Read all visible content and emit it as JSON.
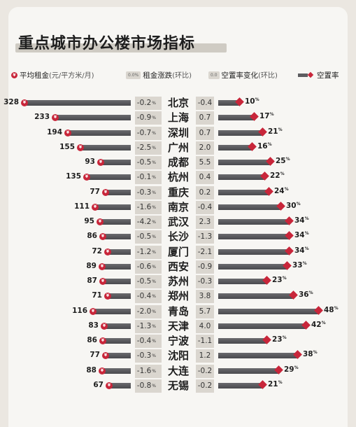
{
  "title": "重点城市办公楼市场指标",
  "legend": {
    "rent_icon": "¥",
    "rent_label": "平均租金",
    "rent_unit": "(元/平方米/月)",
    "rent_change_chip": "0.0%",
    "rent_change_label": "租金涨跌",
    "rent_change_period": "(环比)",
    "vacancy_change_chip": "0.0",
    "vacancy_change_label": "空置率变化",
    "vacancy_change_period": "(环比)",
    "vacancy_label": "空置率"
  },
  "colors": {
    "accent": "#c8263a",
    "bar": "#55555a",
    "chip": "#dad6cf",
    "card": "#f7f6f3",
    "background": "#ebe7e1"
  },
  "chart_data": {
    "type": "bar",
    "rent_max": 328,
    "vacancy_max": 48,
    "percent_suffix": "%",
    "rent_icon": "¥",
    "rows": [
      {
        "city": "北京",
        "rent": "328",
        "rent_change": "-0.2",
        "vacancy_change": "-0.4",
        "vacancy": "10"
      },
      {
        "city": "上海",
        "rent": "233",
        "rent_change": "-0.9",
        "vacancy_change": "0.7",
        "vacancy": "17"
      },
      {
        "city": "深圳",
        "rent": "194",
        "rent_change": "-0.7",
        "vacancy_change": "0.7",
        "vacancy": "21"
      },
      {
        "city": "广州",
        "rent": "155",
        "rent_change": "-2.5",
        "vacancy_change": "2.0",
        "vacancy": "16"
      },
      {
        "city": "成都",
        "rent": "93",
        "rent_change": "-0.5",
        "vacancy_change": "5.5",
        "vacancy": "25"
      },
      {
        "city": "杭州",
        "rent": "135",
        "rent_change": "-0.1",
        "vacancy_change": "0.4",
        "vacancy": "22"
      },
      {
        "city": "重庆",
        "rent": "77",
        "rent_change": "-0.3",
        "vacancy_change": "0.2",
        "vacancy": "24"
      },
      {
        "city": "南京",
        "rent": "111",
        "rent_change": "-1.6",
        "vacancy_change": "-0.4",
        "vacancy": "30"
      },
      {
        "city": "武汉",
        "rent": "95",
        "rent_change": "-4.2",
        "vacancy_change": "2.3",
        "vacancy": "34"
      },
      {
        "city": "长沙",
        "rent": "86",
        "rent_change": "-0.5",
        "vacancy_change": "-1.3",
        "vacancy": "34"
      },
      {
        "city": "厦门",
        "rent": "72",
        "rent_change": "-1.2",
        "vacancy_change": "-2.1",
        "vacancy": "34"
      },
      {
        "city": "西安",
        "rent": "89",
        "rent_change": "-0.6",
        "vacancy_change": "-0.9",
        "vacancy": "33"
      },
      {
        "city": "苏州",
        "rent": "87",
        "rent_change": "-0.5",
        "vacancy_change": "-0.3",
        "vacancy": "23"
      },
      {
        "city": "郑州",
        "rent": "71",
        "rent_change": "-0.4",
        "vacancy_change": "3.8",
        "vacancy": "36"
      },
      {
        "city": "青岛",
        "rent": "116",
        "rent_change": "-2.0",
        "vacancy_change": "5.7",
        "vacancy": "48"
      },
      {
        "city": "天津",
        "rent": "83",
        "rent_change": "-1.3",
        "vacancy_change": "4.0",
        "vacancy": "42"
      },
      {
        "city": "宁波",
        "rent": "86",
        "rent_change": "-0.4",
        "vacancy_change": "-1.1",
        "vacancy": "23"
      },
      {
        "city": "沈阳",
        "rent": "77",
        "rent_change": "-0.3",
        "vacancy_change": "1.2",
        "vacancy": "38"
      },
      {
        "city": "大连",
        "rent": "88",
        "rent_change": "-1.6",
        "vacancy_change": "-0.2",
        "vacancy": "29"
      },
      {
        "city": "无锡",
        "rent": "67",
        "rent_change": "-0.8",
        "vacancy_change": "-0.2",
        "vacancy": "21"
      }
    ]
  }
}
